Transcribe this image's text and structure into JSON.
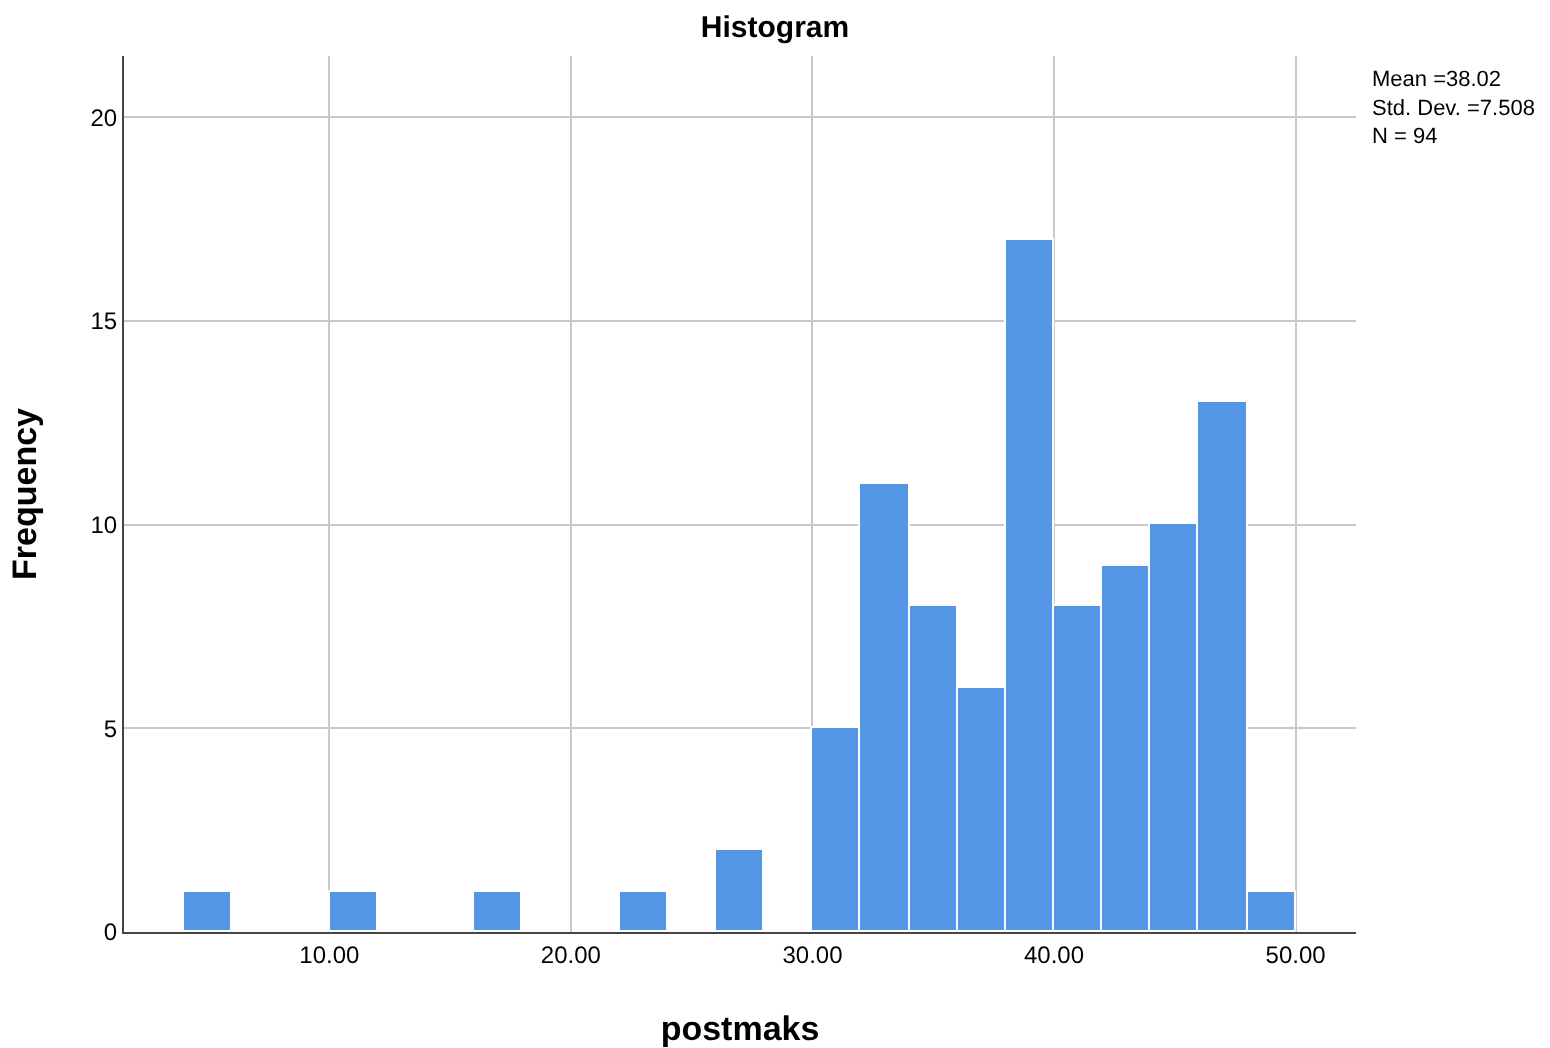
{
  "chart_data": {
    "type": "histogram",
    "title": "Histogram",
    "xlabel": "postmaks",
    "ylabel": "Frequency",
    "bins": [
      4,
      6,
      8,
      10,
      12,
      14,
      16,
      18,
      20,
      22,
      24,
      26,
      28,
      30,
      32,
      34,
      36,
      38,
      40,
      42,
      44,
      46,
      48,
      50
    ],
    "values": [
      1,
      0,
      0,
      1,
      0,
      0,
      1,
      0,
      0,
      1,
      0,
      2,
      0,
      5,
      11,
      8,
      6,
      17,
      8,
      9,
      10,
      13,
      1
    ],
    "color": "#5596e6",
    "xlim": [
      1.5,
      52.5
    ],
    "xticks": [
      {
        "value": 10,
        "label": "10.00"
      },
      {
        "value": 20,
        "label": "20.00"
      },
      {
        "value": 30,
        "label": "30.00"
      },
      {
        "value": 40,
        "label": "40.00"
      },
      {
        "value": 50,
        "label": "50.00"
      }
    ],
    "ylim": [
      0,
      21.5
    ],
    "yticks": [
      0,
      5,
      10,
      15,
      20
    ],
    "grid": true,
    "annotations": [
      "Mean =38.02\nStd. Dev. =7.508\nN = 94"
    ]
  }
}
